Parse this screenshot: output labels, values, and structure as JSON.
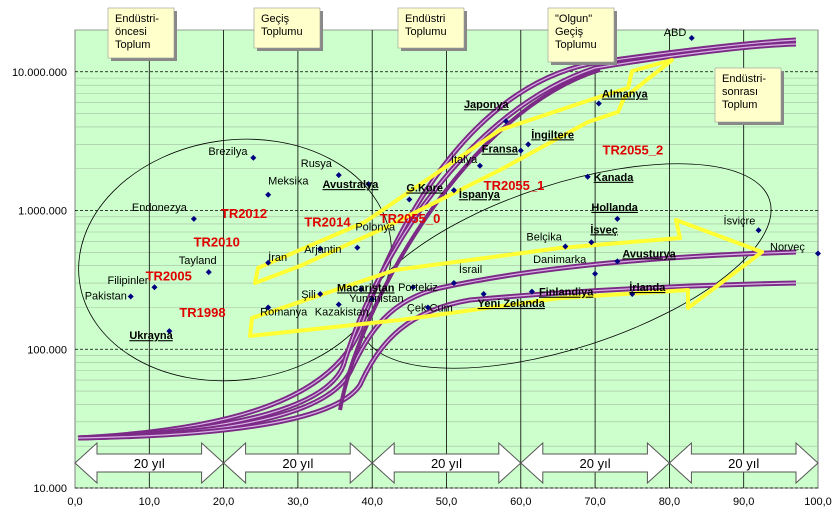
{
  "chart_data": {
    "type": "scatter",
    "title": "",
    "xlabel": "",
    "ylabel": "",
    "xlim": [
      0,
      100
    ],
    "ylim_log": [
      10000,
      20000000
    ],
    "x_ticks": [
      "0,0",
      "10,0",
      "20,0",
      "30,0",
      "40,0",
      "50,0",
      "60,0",
      "70,0",
      "80,0",
      "90,0",
      "100,0"
    ],
    "y_ticks": [
      {
        "value": 10000,
        "label": "10.000"
      },
      {
        "value": 100000,
        "label": "100.000"
      },
      {
        "value": 1000000,
        "label": "1.000.000"
      },
      {
        "value": 10000000,
        "label": "10.000.000"
      }
    ],
    "y_scale": "log",
    "grid": true,
    "colors": {
      "plot_bg": "#ccffcc",
      "marker": "#000080",
      "tr_label": "#e00000",
      "curve": "#7b2a86",
      "arrow": "#ffff33",
      "stage_box": "#ffffcc"
    },
    "stages": [
      {
        "label": "Endüstri-\nöncesi\nToplum",
        "x": 6.5
      },
      {
        "label": "Geçiş\nToplumu",
        "x": 25.5
      },
      {
        "label": "Endüstri\nToplumu",
        "x": 44.5
      },
      {
        "label": "\"Olgun\"\nGeçiş\nToplumu",
        "x": 64.5
      },
      {
        "label": "Endüstri-\nsonrası\nToplum",
        "x": 87.0
      }
    ],
    "period_arrows": [
      "20 yıl",
      "20 yıl",
      "20 yıl",
      "20 yıl",
      "20 yıl"
    ],
    "countries": [
      {
        "name": "Pakistan",
        "x": 7.5,
        "y": 240000,
        "bold": false
      },
      {
        "name": "Filipinler",
        "x": 10.7,
        "y": 280000,
        "bold": false
      },
      {
        "name": "Ukrayna",
        "x": 12.7,
        "y": 135000,
        "bold": true
      },
      {
        "name": "Endonezya",
        "x": 16.0,
        "y": 870000,
        "bold": false
      },
      {
        "name": "Tayland",
        "x": 18.0,
        "y": 360000,
        "bold": false
      },
      {
        "name": "Brezilya",
        "x": 24.0,
        "y": 2400000,
        "bold": false
      },
      {
        "name": "Meksika",
        "x": 26.0,
        "y": 1300000,
        "bold": false
      },
      {
        "name": "İran",
        "x": 26.0,
        "y": 420000,
        "bold": false
      },
      {
        "name": "Romanya",
        "x": 26.0,
        "y": 200000,
        "bold": false
      },
      {
        "name": "Arjantin",
        "x": 33.0,
        "y": 530000,
        "bold": false
      },
      {
        "name": "Rusya",
        "x": 35.5,
        "y": 1800000,
        "bold": false
      },
      {
        "name": "Şili",
        "x": 33.0,
        "y": 250000,
        "bold": false
      },
      {
        "name": "Kazakistan",
        "x": 35.5,
        "y": 210000,
        "bold": false
      },
      {
        "name": "Polonya",
        "x": 38.0,
        "y": 540000,
        "bold": false
      },
      {
        "name": "Macaristan",
        "x": 38.5,
        "y": 270000,
        "bold": true
      },
      {
        "name": "Yunanistan",
        "x": 40.0,
        "y": 230000,
        "bold": false
      },
      {
        "name": "Avustralya",
        "x": 39.5,
        "y": 1550000,
        "bold": true
      },
      {
        "name": "Portekiz",
        "x": 45.5,
        "y": 280000,
        "bold": false
      },
      {
        "name": "Çek Cum",
        "x": 47.5,
        "y": 200000,
        "bold": false
      },
      {
        "name": "G.Kore",
        "x": 45.0,
        "y": 1200000,
        "bold": true
      },
      {
        "name": "İspanya",
        "x": 51.0,
        "y": 1400000,
        "bold": true
      },
      {
        "name": "İsrail",
        "x": 51.0,
        "y": 300000,
        "bold": false
      },
      {
        "name": "İtalya",
        "x": 54.5,
        "y": 2100000,
        "bold": false
      },
      {
        "name": "Yeni Zelanda",
        "x": 55.0,
        "y": 250000,
        "bold": true
      },
      {
        "name": "Japonya",
        "x": 58.0,
        "y": 4400000,
        "bold": true
      },
      {
        "name": "Fransa",
        "x": 60.0,
        "y": 2700000,
        "bold": true
      },
      {
        "name": "İngiltere",
        "x": 61.0,
        "y": 3000000,
        "bold": true
      },
      {
        "name": "Finlandiya",
        "x": 61.5,
        "y": 260000,
        "bold": true
      },
      {
        "name": "Belçika",
        "x": 66.0,
        "y": 550000,
        "bold": false
      },
      {
        "name": "Kanada",
        "x": 69.0,
        "y": 1750000,
        "bold": true
      },
      {
        "name": "İsveç",
        "x": 69.5,
        "y": 590000,
        "bold": true
      },
      {
        "name": "Danimarka",
        "x": 70.0,
        "y": 350000,
        "bold": false
      },
      {
        "name": "Almanya",
        "x": 70.5,
        "y": 5900000,
        "bold": true
      },
      {
        "name": "Hollanda",
        "x": 73.0,
        "y": 870000,
        "bold": true
      },
      {
        "name": "Avusturya",
        "x": 73.0,
        "y": 430000,
        "bold": true
      },
      {
        "name": "İrlanda",
        "x": 75.0,
        "y": 250000,
        "bold": true
      },
      {
        "name": "ABD",
        "x": 83.0,
        "y": 17500000,
        "bold": false
      },
      {
        "name": "İsviçre",
        "x": 92.0,
        "y": 720000,
        "bold": false
      },
      {
        "name": "Norveç",
        "x": 100.0,
        "y": 490000,
        "bold": false
      }
    ],
    "tr_points": [
      {
        "name": "TR1998",
        "x": 20.5,
        "y": 195000
      },
      {
        "name": "TR2005",
        "x": 16.5,
        "y": 370000
      },
      {
        "name": "TR2010",
        "x": 20.0,
        "y": 580000
      },
      {
        "name": "TR2012",
        "x": 23.0,
        "y": 800000
      },
      {
        "name": "TR2014",
        "x": 31.0,
        "y": 720000
      },
      {
        "name": "TR2055_0",
        "x": 41.0,
        "y": 880000
      },
      {
        "name": "TR2055_1",
        "x": 55.0,
        "y": 1600000
      },
      {
        "name": "TR2055_2",
        "x": 71.0,
        "y": 2900000
      }
    ]
  }
}
